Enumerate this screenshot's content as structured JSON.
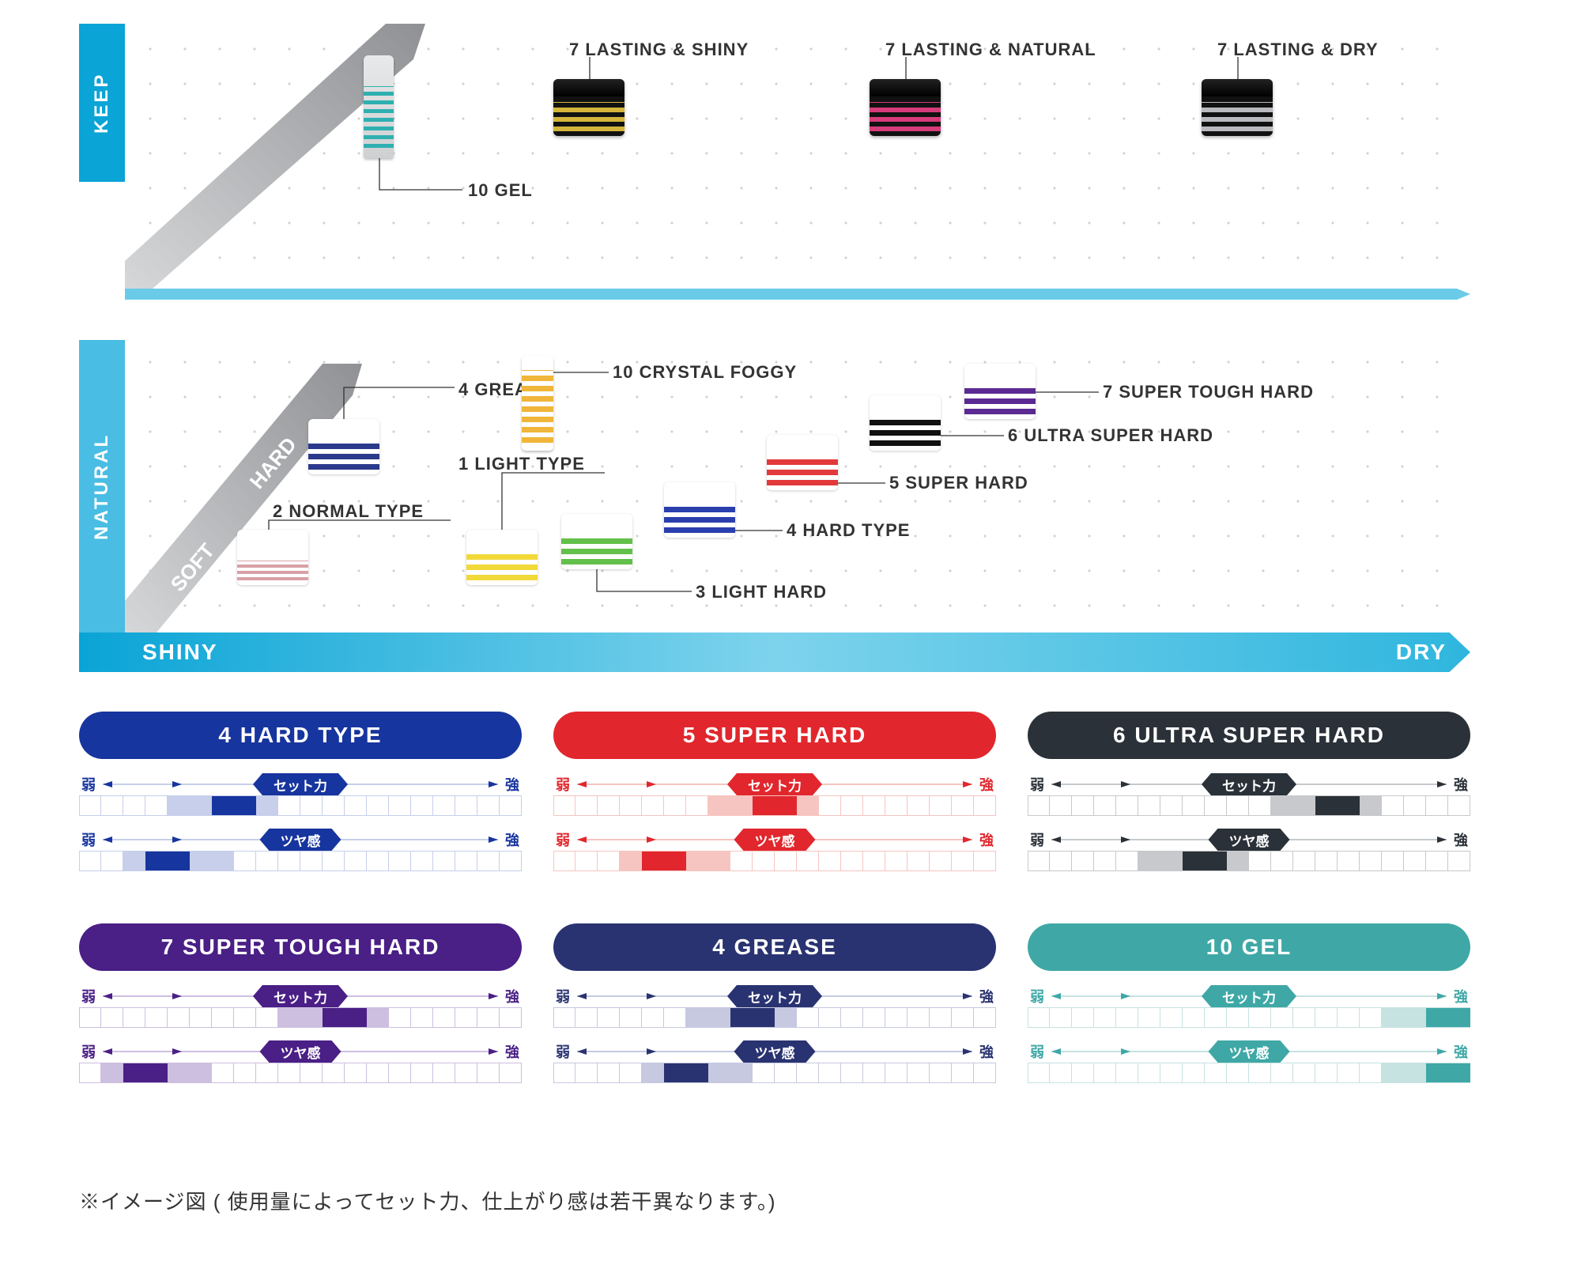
{
  "axis": {
    "y_top": "KEEP",
    "y_bottom": "NATURAL",
    "x_left": "SHINY",
    "x_right": "DRY",
    "y_top_color": "#0aa4d6",
    "y_bottom_color": "#49bde3",
    "diag_soft": "SOFT",
    "diag_hard": "HARD"
  },
  "matrix": {
    "gel10": {
      "label": "10 GEL",
      "stripe": "#2fb0b0"
    },
    "lastShiny": {
      "label": "7 LASTING & SHINY",
      "body": "#111",
      "accent": "#d4b43a"
    },
    "lastNatural": {
      "label": "7 LASTING & NATURAL",
      "body": "#111",
      "accent": "#d63b7a"
    },
    "lastDry": {
      "label": "7 LASTING & DRY",
      "body": "#111",
      "accent": "#b9babd"
    },
    "grease4": {
      "label": "4 GREASE",
      "stripe": "#2b3a8c"
    },
    "normal2": {
      "label": "2 NORMAL TYPE",
      "stripe": "#d9a0a6"
    },
    "foggy10": {
      "label": "10 CRYSTAL FOGGY",
      "stripe": "#f0b63a"
    },
    "light1": {
      "label": "1 LIGHT TYPE",
      "stripe": "#f2d93a"
    },
    "lhard3": {
      "label": "3 LIGHT HARD",
      "stripe": "#63c04a"
    },
    "hard4": {
      "label": "4 HARD TYPE",
      "stripe": "#2a3fae"
    },
    "super5": {
      "label": "5 SUPER HARD",
      "stripe": "#e23a3a"
    },
    "ultra6": {
      "label": "6 ULTRA SUPER HARD",
      "stripe": "#111"
    },
    "tough7": {
      "label": "7 SUPER TOUGH HARD",
      "stripe": "#5a2a92"
    }
  },
  "cardCommon": {
    "weak": "弱",
    "strong": "強",
    "set": "セット力",
    "gloss": "ツヤ感",
    "segments": 20
  },
  "cards": [
    {
      "title": "4 HARD TYPE",
      "color": "#17359e",
      "light": "#c7cfea",
      "set": {
        "range": [
          5,
          9
        ],
        "peak": [
          7,
          8
        ]
      },
      "gloss": {
        "range": [
          3,
          7
        ],
        "peak": [
          4,
          5
        ]
      }
    },
    {
      "title": "5 SUPER HARD",
      "color": "#e1272d",
      "light": "#f6c5c1",
      "set": {
        "range": [
          8,
          12
        ],
        "peak": [
          10,
          11
        ]
      },
      "gloss": {
        "range": [
          4,
          8
        ],
        "peak": [
          5,
          6
        ]
      }
    },
    {
      "title": "6 ULTRA SUPER HARD",
      "color": "#2b3138",
      "light": "#c7c9cc",
      "set": {
        "range": [
          12,
          16
        ],
        "peak": [
          14,
          15
        ]
      },
      "gloss": {
        "range": [
          6,
          10
        ],
        "peak": [
          8,
          9
        ]
      }
    },
    {
      "title": "7 SUPER TOUGH HARD",
      "color": "#4a1f86",
      "light": "#cdbfe0",
      "set": {
        "range": [
          10,
          14
        ],
        "peak": [
          12,
          13
        ]
      },
      "gloss": {
        "range": [
          2,
          6
        ],
        "peak": [
          3,
          4
        ]
      }
    },
    {
      "title": "4 GREASE",
      "color": "#2a3371",
      "light": "#c6c9e0",
      "set": {
        "range": [
          7,
          11
        ],
        "peak": [
          9,
          10
        ]
      },
      "gloss": {
        "range": [
          5,
          9
        ],
        "peak": [
          6,
          7
        ]
      }
    },
    {
      "title": "10 GEL",
      "color": "#3fa8a6",
      "light": "#c6e2e1",
      "set": {
        "range": [
          17,
          20
        ],
        "peak": [
          19,
          20
        ]
      },
      "gloss": {
        "range": [
          17,
          20
        ],
        "peak": [
          19,
          20
        ]
      }
    }
  ],
  "footnote": "※イメージ図 ( 使用量によってセット力、仕上がり感は若干異なります。)"
}
